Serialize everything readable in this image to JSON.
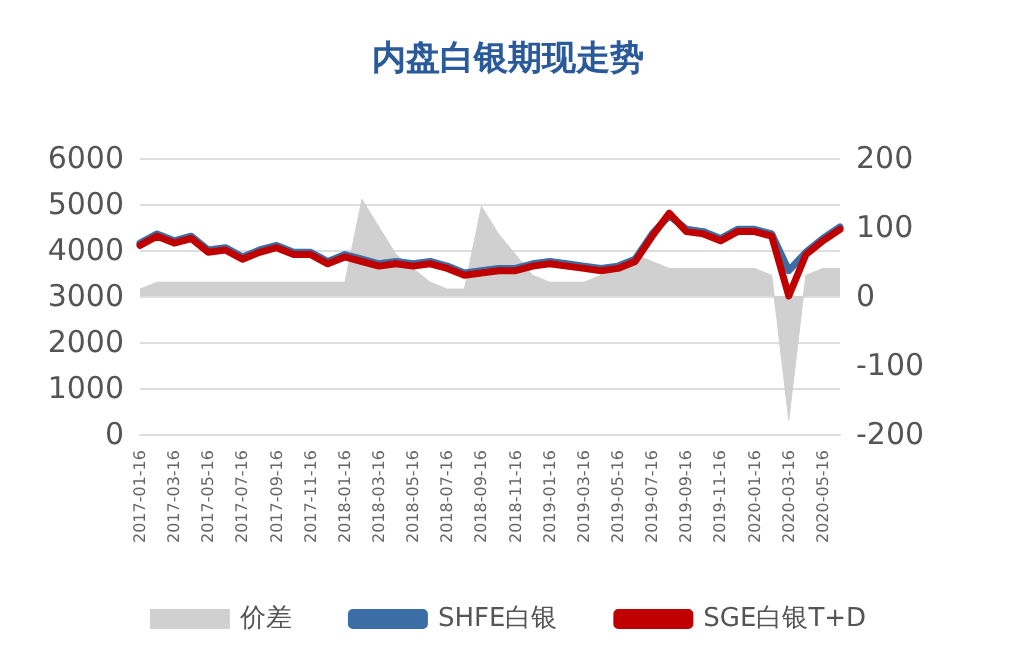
{
  "chart_data": {
    "type": "line",
    "title": "内盘白银期现走势",
    "categories": [
      "2017-01-16",
      null,
      "2017-03-16",
      null,
      "2017-05-16",
      null,
      "2017-07-16",
      null,
      "2017-09-16",
      null,
      "2017-11-16",
      null,
      "2018-01-16",
      null,
      "2018-03-16",
      null,
      "2018-05-16",
      null,
      "2018-07-16",
      null,
      "2018-09-16",
      null,
      "2018-11-16",
      null,
      "2019-01-16",
      null,
      "2019-03-16",
      null,
      "2019-05-16",
      null,
      "2019-07-16",
      null,
      "2019-09-16",
      null,
      "2019-11-16",
      null,
      "2020-01-16",
      null,
      "2020-03-16",
      null,
      "2020-05-16",
      null
    ],
    "series": [
      {
        "name": "价差",
        "type": "area",
        "axis": "y2",
        "color": "#d0d0d0",
        "values": [
          10,
          20,
          20,
          20,
          20,
          20,
          20,
          20,
          20,
          20,
          20,
          20,
          20,
          140,
          100,
          60,
          40,
          20,
          10,
          10,
          130,
          90,
          60,
          30,
          20,
          20,
          20,
          30,
          40,
          60,
          50,
          40,
          40,
          40,
          40,
          40,
          40,
          30,
          -180,
          30,
          40,
          40
        ]
      },
      {
        "name": "SHFE白银",
        "color": "#3a6ea5",
        "values": [
          4150,
          4350,
          4200,
          4300,
          4000,
          4050,
          3850,
          4000,
          4100,
          3950,
          3950,
          3750,
          3900,
          3800,
          3700,
          3750,
          3700,
          3750,
          3650,
          3500,
          3550,
          3600,
          3600,
          3700,
          3750,
          3700,
          3650,
          3600,
          3650,
          3800,
          4350,
          4750,
          4450,
          4400,
          4250,
          4450,
          4450,
          4350,
          3550,
          3950,
          4250,
          4500
        ]
      },
      {
        "name": "SGE白银T+D",
        "color": "#c00000",
        "values": [
          4100,
          4300,
          4150,
          4250,
          3950,
          4000,
          3800,
          3950,
          4050,
          3900,
          3900,
          3700,
          3850,
          3750,
          3650,
          3700,
          3650,
          3700,
          3600,
          3450,
          3500,
          3550,
          3550,
          3650,
          3700,
          3650,
          3600,
          3550,
          3600,
          3750,
          4300,
          4800,
          4400,
          4350,
          4200,
          4400,
          4400,
          4300,
          3000,
          3900,
          4200,
          4450
        ]
      }
    ],
    "ylim": [
      0,
      6000
    ],
    "yticks": [
      0,
      1000,
      2000,
      3000,
      4000,
      5000,
      6000
    ],
    "y2lim": [
      -200,
      200
    ],
    "y2ticks": [
      -200,
      -100,
      0,
      100,
      200
    ],
    "grid": "y",
    "legend": "bottom",
    "marker": "none",
    "line_style": "solid"
  }
}
